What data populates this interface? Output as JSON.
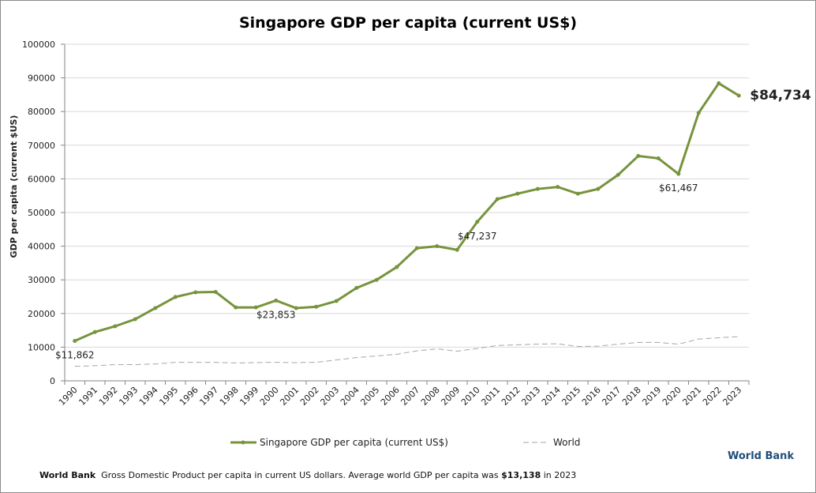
{
  "chart_data": {
    "type": "line",
    "title": "Singapore GDP per capita (current US$)",
    "xlabel": "",
    "ylabel": "GDP per capita (current $US)",
    "ylim": [
      0,
      100000
    ],
    "yticks": [
      0,
      10000,
      20000,
      30000,
      40000,
      50000,
      60000,
      70000,
      80000,
      90000,
      100000
    ],
    "grid": true,
    "legend_placement": "bottom",
    "categories": [
      "1990",
      "1991",
      "1992",
      "1993",
      "1994",
      "1995",
      "1996",
      "1997",
      "1998",
      "1999",
      "2000",
      "2001",
      "2002",
      "2003",
      "2004",
      "2005",
      "2006",
      "2007",
      "2008",
      "2009",
      "2010",
      "2011",
      "2012",
      "2013",
      "2014",
      "2015",
      "2016",
      "2017",
      "2018",
      "2019",
      "2020",
      "2021",
      "2022",
      "2023"
    ],
    "series": [
      {
        "name": "Singapore GDP per capita (current US$)",
        "color": "#77933c",
        "values": [
          11862,
          14500,
          16200,
          18300,
          21600,
          24900,
          26300,
          26400,
          21800,
          21800,
          23853,
          21600,
          22000,
          23700,
          27600,
          30000,
          33800,
          39400,
          40000,
          38900,
          47237,
          54000,
          55600,
          57000,
          57600,
          55600,
          57000,
          61200,
          66800,
          66100,
          61467,
          79600,
          88400,
          84734
        ]
      },
      {
        "name": "World",
        "color": "#a6a6a6",
        "values": [
          4300,
          4500,
          4800,
          4800,
          5000,
          5500,
          5500,
          5500,
          5300,
          5400,
          5500,
          5400,
          5500,
          6200,
          6900,
          7400,
          7900,
          8900,
          9500,
          8800,
          9600,
          10500,
          10700,
          10900,
          11000,
          10200,
          10300,
          10900,
          11400,
          11400,
          10900,
          12400,
          12800,
          13138
        ]
      }
    ],
    "annotations": [
      {
        "category": "1990",
        "text": "$11,862"
      },
      {
        "category": "2000",
        "text": "$23,853"
      },
      {
        "category": "2010",
        "text": "$47,237"
      },
      {
        "category": "2020",
        "text": "$61,467"
      },
      {
        "category": "2023",
        "text": "$84,734"
      }
    ]
  },
  "footer": {
    "source": "World Bank",
    "text": "Gross Domestic Product per capita in current US dollars.  Average world GDP per capita was ",
    "value": "$13,138",
    "suffix": " in 2023"
  },
  "brand": "World Bank"
}
